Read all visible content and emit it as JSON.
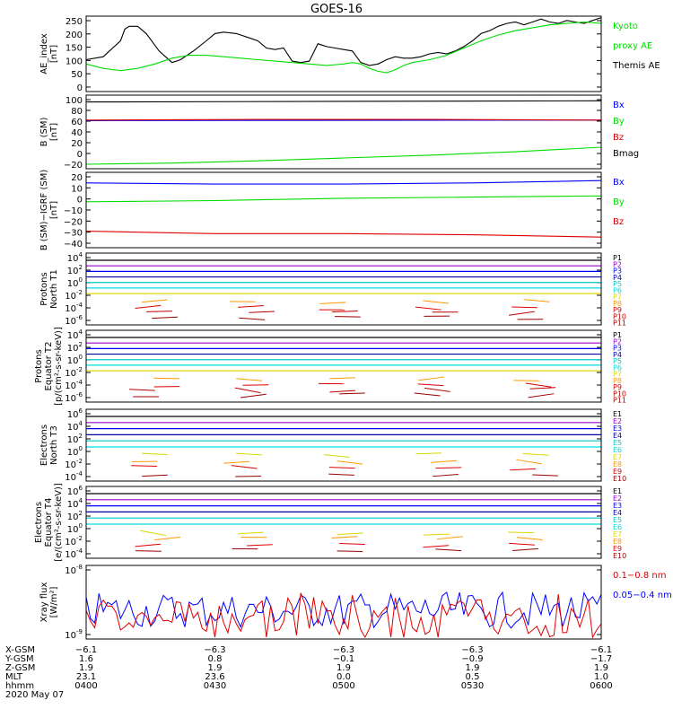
{
  "title": "GOES-16",
  "colors": {
    "black": "#000000",
    "blue": "#0000ff",
    "green": "#00dd00",
    "red": "#dd0000",
    "purple": "#9900cc",
    "navy": "#0000aa",
    "teal": "#00c8c8",
    "cyan": "#00dddd",
    "yellow": "#d8d800",
    "orange": "#ff9900",
    "darkred": "#bb0000",
    "brown": "#990000"
  },
  "chart_data": [
    {
      "type": "line",
      "panel": "ae_index",
      "ylabel": [
        "AE_index",
        "[nT]"
      ],
      "yticks": [
        "250",
        "200",
        "150",
        "100",
        "50",
        "0"
      ],
      "ylim": [
        0,
        260
      ],
      "legend": [
        {
          "label": "Kyoto",
          "color": "green"
        },
        {
          "label": "proxy AE",
          "color": "green"
        },
        {
          "label": "Themis AE",
          "color": "black"
        }
      ],
      "series": [
        {
          "name": "Themis AE",
          "color": "black",
          "x": [
            0,
            4,
            8,
            9,
            10,
            12,
            14,
            17,
            20,
            22,
            25,
            28,
            30,
            32,
            35,
            38,
            40,
            42,
            44,
            46,
            48,
            50,
            52,
            54,
            55,
            56,
            58,
            60,
            62,
            64,
            66,
            68,
            70,
            72,
            74,
            76,
            78,
            80,
            82,
            84,
            86,
            88,
            90,
            92,
            94,
            96,
            98,
            100,
            102,
            104,
            106,
            108,
            110,
            112,
            114,
            116,
            118,
            120
          ],
          "y": [
            110,
            120,
            175,
            215,
            225,
            225,
            200,
            140,
            100,
            110,
            140,
            175,
            200,
            205,
            200,
            185,
            175,
            150,
            145,
            150,
            105,
            100,
            105,
            165,
            160,
            155,
            150,
            145,
            140,
            100,
            90,
            95,
            110,
            120,
            115,
            115,
            120,
            130,
            135,
            130,
            140,
            155,
            175,
            200,
            210,
            225,
            235,
            240,
            230,
            240,
            250,
            240,
            235,
            245,
            240,
            235,
            245,
            255
          ]
        },
        {
          "name": "Kyoto proxy AE",
          "color": "green",
          "x": [
            0,
            4,
            8,
            12,
            16,
            20,
            24,
            28,
            32,
            36,
            40,
            44,
            48,
            52,
            56,
            60,
            62,
            64,
            66,
            68,
            70,
            72,
            74,
            76,
            80,
            84,
            88,
            92,
            96,
            100,
            104,
            108,
            112,
            116,
            120
          ],
          "y": [
            95,
            80,
            72,
            80,
            95,
            115,
            125,
            125,
            120,
            115,
            110,
            105,
            100,
            95,
            90,
            95,
            100,
            95,
            80,
            70,
            65,
            75,
            90,
            100,
            110,
            125,
            150,
            175,
            195,
            210,
            220,
            230,
            235,
            240,
            235
          ]
        }
      ]
    },
    {
      "type": "line",
      "panel": "b_sm",
      "ylabel": [
        "B (SM)",
        "[nT]"
      ],
      "yticks": [
        "100",
        "80",
        "60",
        "40",
        "20",
        "0",
        "−20"
      ],
      "ylim": [
        -25,
        105
      ],
      "legend": [
        {
          "label": "Bx",
          "color": "blue"
        },
        {
          "label": "By",
          "color": "green"
        },
        {
          "label": "Bz",
          "color": "red"
        },
        {
          "label": "Bmag",
          "color": "black"
        }
      ],
      "series": [
        {
          "name": "Bx",
          "color": "blue",
          "x": [
            0,
            120
          ],
          "y": [
            60,
            61
          ]
        },
        {
          "name": "By",
          "color": "green",
          "x": [
            0,
            20,
            40,
            60,
            80,
            100,
            120
          ],
          "y": [
            -17,
            -15,
            -11,
            -6,
            -1,
            5,
            13
          ]
        },
        {
          "name": "Bz",
          "color": "red",
          "x": [
            0,
            40,
            80,
            120
          ],
          "y": [
            61,
            62,
            62,
            61
          ]
        },
        {
          "name": "Bmag",
          "color": "black",
          "x": [
            0,
            120
          ],
          "y": [
            93,
            95
          ]
        }
      ]
    },
    {
      "type": "line",
      "panel": "b_sm_igrf",
      "ylabel": [
        "B (SM)−IGRF (SM)",
        "[nT]"
      ],
      "yticks": [
        "20",
        "10",
        "0",
        "−10",
        "−20",
        "−30",
        "−40"
      ],
      "ylim": [
        -42,
        22
      ],
      "legend": [
        {
          "label": "Bx",
          "color": "blue"
        },
        {
          "label": "By",
          "color": "green"
        },
        {
          "label": "Bz",
          "color": "red"
        }
      ],
      "series": [
        {
          "name": "Bx",
          "color": "blue",
          "x": [
            0,
            30,
            60,
            90,
            120
          ],
          "y": [
            13,
            12,
            12,
            13,
            15
          ]
        },
        {
          "name": "By",
          "color": "green",
          "x": [
            0,
            30,
            60,
            90,
            120
          ],
          "y": [
            -3,
            -2,
            0,
            1,
            2
          ]
        },
        {
          "name": "Bz",
          "color": "red",
          "x": [
            0,
            30,
            60,
            90,
            120
          ],
          "y": [
            -28,
            -30,
            -30,
            -31,
            -33
          ]
        }
      ]
    },
    {
      "type": "line",
      "panel": "protons_t1",
      "ylabel": [
        "Protons",
        "North T1"
      ],
      "yticks": [
        "10^4",
        "10^2",
        "10^0",
        "10^-2",
        "10^-4",
        "10^-6"
      ],
      "legend": [
        {
          "label": "P1",
          "color": "black"
        },
        {
          "label": "P2",
          "color": "purple"
        },
        {
          "label": "P3",
          "color": "blue"
        },
        {
          "label": "P4",
          "color": "navy"
        },
        {
          "label": "P5",
          "color": "teal"
        },
        {
          "label": "P6",
          "color": "cyan"
        },
        {
          "label": "P7",
          "color": "yellow"
        },
        {
          "label": "P8",
          "color": "orange"
        },
        {
          "label": "P9",
          "color": "red"
        },
        {
          "label": "P10",
          "color": "darkred"
        },
        {
          "label": "P11",
          "color": "brown"
        }
      ]
    },
    {
      "type": "line",
      "panel": "protons_t2",
      "ylabel": [
        "Protons",
        "Equator T2",
        "[p/(cm²-s-sr-keV)]"
      ],
      "yticks": [
        "10^4",
        "10^2",
        "10^0",
        "10^-2",
        "10^-4",
        "10^-6"
      ],
      "legend": [
        {
          "label": "P1",
          "color": "black"
        },
        {
          "label": "P2",
          "color": "purple"
        },
        {
          "label": "P3",
          "color": "blue"
        },
        {
          "label": "P4",
          "color": "navy"
        },
        {
          "label": "P5",
          "color": "teal"
        },
        {
          "label": "P6",
          "color": "cyan"
        },
        {
          "label": "P7",
          "color": "yellow"
        },
        {
          "label": "P8",
          "color": "orange"
        },
        {
          "label": "P9",
          "color": "red"
        },
        {
          "label": "P10",
          "color": "darkred"
        },
        {
          "label": "P11",
          "color": "brown"
        }
      ]
    },
    {
      "type": "line",
      "panel": "electrons_t3",
      "ylabel": [
        "Electrons",
        "North T3"
      ],
      "yticks": [
        "10^6",
        "10^4",
        "10^2",
        "10^0",
        "10^-2",
        "10^-4"
      ],
      "legend": [
        {
          "label": "E1",
          "color": "black"
        },
        {
          "label": "E2",
          "color": "purple"
        },
        {
          "label": "E3",
          "color": "blue"
        },
        {
          "label": "E4",
          "color": "navy"
        },
        {
          "label": "E5",
          "color": "teal"
        },
        {
          "label": "E6",
          "color": "cyan"
        },
        {
          "label": "E7",
          "color": "yellow"
        },
        {
          "label": "E8",
          "color": "orange"
        },
        {
          "label": "E9",
          "color": "red"
        },
        {
          "label": "E10",
          "color": "brown"
        }
      ]
    },
    {
      "type": "line",
      "panel": "electrons_t4",
      "ylabel": [
        "Electrons",
        "Equator T4",
        "[e/(cm²-s-sr-keV)]"
      ],
      "yticks": [
        "10^6",
        "10^4",
        "10^2",
        "10^0",
        "10^-2",
        "10^-4"
      ],
      "legend": [
        {
          "label": "E1",
          "color": "black"
        },
        {
          "label": "E2",
          "color": "purple"
        },
        {
          "label": "E3",
          "color": "blue"
        },
        {
          "label": "E4",
          "color": "navy"
        },
        {
          "label": "E5",
          "color": "teal"
        },
        {
          "label": "E6",
          "color": "cyan"
        },
        {
          "label": "E7",
          "color": "yellow"
        },
        {
          "label": "E8",
          "color": "orange"
        },
        {
          "label": "E9",
          "color": "red"
        },
        {
          "label": "E10",
          "color": "brown"
        }
      ]
    },
    {
      "type": "line",
      "panel": "xray",
      "ylabel": [
        "Xray flux",
        "[W/m²]"
      ],
      "yticks": [
        "10^-8",
        "10^-9"
      ],
      "legend": [
        {
          "label": "0.1−0.8 nm",
          "color": "red"
        },
        {
          "label": "0.05−0.4 nm",
          "color": "blue"
        }
      ]
    }
  ],
  "x_axis": {
    "row_labels": [
      "X-GSM",
      "Y-GSM",
      "Z-GSM",
      "MLT",
      "hhmm"
    ],
    "date": "2020 May 07",
    "columns": [
      {
        "values": [
          "−6.1",
          "1.6",
          "1.9",
          "23.1",
          "0400"
        ]
      },
      {
        "values": [
          "−6.3",
          "0.8",
          "1.9",
          "23.6",
          "0430"
        ]
      },
      {
        "values": [
          "−6.3",
          "−0.1",
          "1.9",
          "0.0",
          "0500"
        ]
      },
      {
        "values": [
          "−6.3",
          "−0.9",
          "1.9",
          "0.5",
          "0530"
        ]
      },
      {
        "values": [
          "−6.1",
          "−1.7",
          "1.9",
          "1.0",
          "0600"
        ]
      }
    ]
  }
}
